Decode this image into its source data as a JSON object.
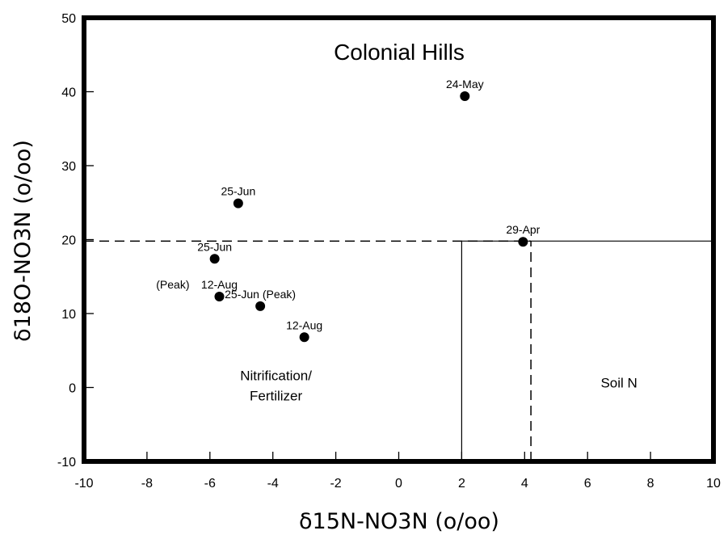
{
  "chart_data": {
    "type": "scatter",
    "title": "Colonial Hills",
    "xlabel": "δ15N-NO3N (o/oo)",
    "ylabel": "δ18O-NO3N (o/oo)",
    "xlim": [
      -10,
      10
    ],
    "ylim": [
      -10,
      50
    ],
    "xticks": [
      -10,
      -8,
      -6,
      -4,
      -2,
      0,
      2,
      4,
      6,
      8,
      10
    ],
    "yticks": [
      -10,
      0,
      10,
      20,
      30,
      40,
      50
    ],
    "grid": false,
    "points": [
      {
        "x": 2.1,
        "y": 39.4,
        "label": "24-May"
      },
      {
        "x": -5.1,
        "y": 24.9,
        "label": "25-Jun"
      },
      {
        "x": -5.85,
        "y": 17.4,
        "label": "25-Jun"
      },
      {
        "x": 3.95,
        "y": 19.7,
        "label": "29-Apr"
      },
      {
        "x": -5.7,
        "y": 12.3,
        "label": "12-Aug",
        "prefix": "(Peak)"
      },
      {
        "x": -4.4,
        "y": 11.0,
        "label": "25-Jun (Peak)"
      },
      {
        "x": -3.0,
        "y": 6.8,
        "label": "12-Aug"
      }
    ],
    "reference_lines": [
      {
        "style": "dashed",
        "from": [
          -10,
          19.8
        ],
        "to": [
          4.2,
          19.8
        ]
      },
      {
        "style": "dashed",
        "from": [
          4.2,
          -10
        ],
        "to": [
          4.2,
          19.8
        ]
      },
      {
        "style": "solid",
        "from": [
          2.0,
          -10
        ],
        "to": [
          2.0,
          19.8
        ]
      },
      {
        "style": "solid",
        "from": [
          2.0,
          19.8
        ],
        "to": [
          10,
          19.8
        ]
      }
    ],
    "regions": [
      {
        "lines": [
          "Nitrification/",
          "Fertilizer"
        ],
        "x": -3.9,
        "y": 1.0
      },
      {
        "lines": [
          "Soil N"
        ],
        "x": 7.0,
        "y": 0.0
      }
    ]
  }
}
